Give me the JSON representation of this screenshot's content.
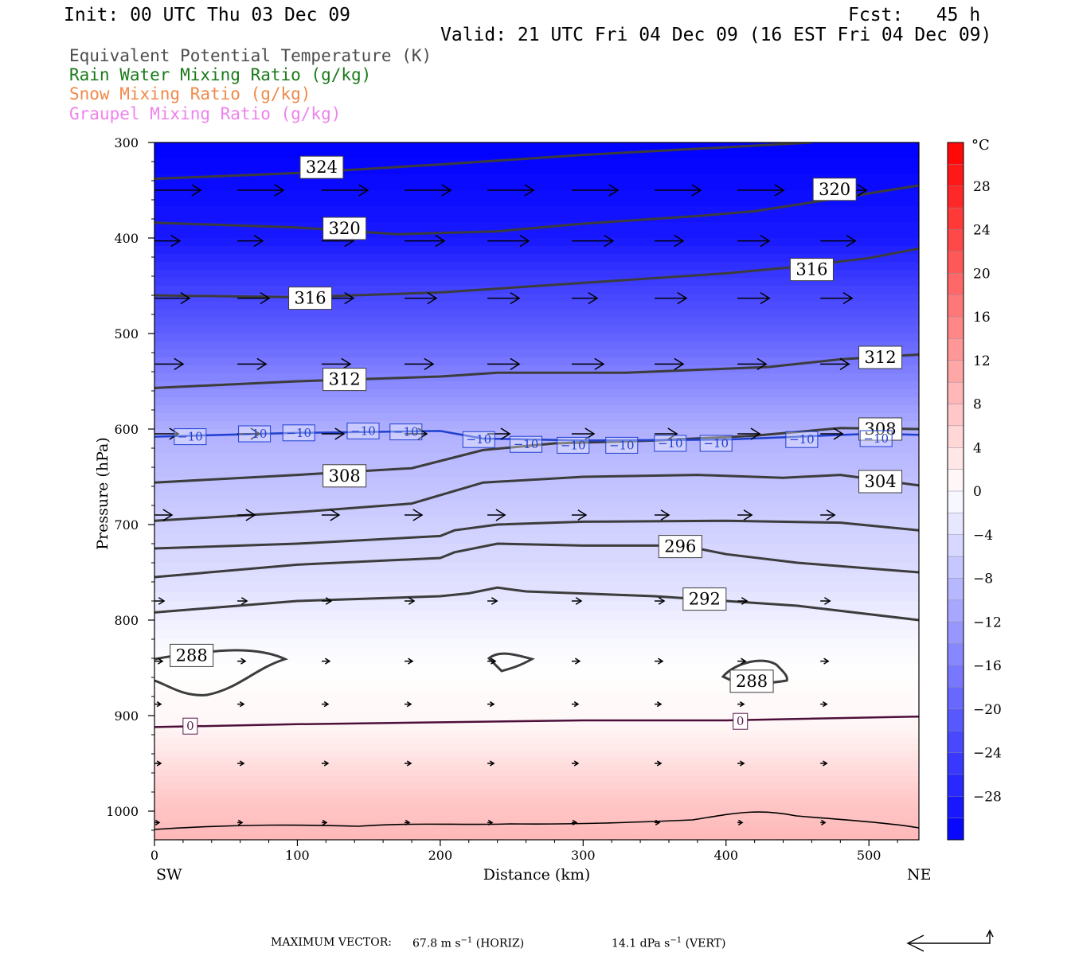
{
  "header": {
    "init": "Init: 00 UTC Thu 03 Dec 09",
    "fcst": "Fcst:   45 h",
    "valid": "Valid: 21 UTC Fri 04 Dec 09 (16 EST Fri 04 Dec 09)"
  },
  "legend": [
    {
      "text": "Equivalent Potential Temperature (K)",
      "color": "#4d4d4d"
    },
    {
      "text": "Rain Water Mixing Ratio (g/kg)",
      "color": "#1a7a1a"
    },
    {
      "text": "Snow Mixing Ratio (g/kg)",
      "color": "#f08a4b"
    },
    {
      "text": "Graupel Mixing Ratio (g/kg)",
      "color": "#ee82ee"
    }
  ],
  "chart_data": {
    "type": "cross-section",
    "xlabel": "Distance (km)",
    "ylabel": "Pressure (hPa)",
    "xlim": [
      0,
      535
    ],
    "ylim": [
      1030,
      300
    ],
    "x_ticks": [
      0,
      100,
      200,
      300,
      400,
      500
    ],
    "y_ticks": [
      300,
      400,
      500,
      600,
      700,
      800,
      900,
      1000
    ],
    "x_left_label": "SW",
    "x_right_label": "NE",
    "colorbar": {
      "unit": "°C",
      "min": -32,
      "max": 32,
      "tick_labels": [
        "28",
        "24",
        "20",
        "16",
        "12",
        "8",
        "4",
        "0",
        "−4",
        "−8",
        "−12",
        "−16",
        "−20",
        "−24",
        "−28"
      ],
      "tick_values": [
        28,
        24,
        20,
        16,
        12,
        8,
        4,
        0,
        -4,
        -8,
        -12,
        -16,
        -20,
        -24,
        -28
      ]
    },
    "temperature_field": [
      {
        "p": 300,
        "t": -32
      },
      {
        "p": 400,
        "t": -29
      },
      {
        "p": 450,
        "t": -24
      },
      {
        "p": 500,
        "t": -20
      },
      {
        "p": 550,
        "t": -15
      },
      {
        "p": 600,
        "t": -10
      },
      {
        "p": 650,
        "t": -8
      },
      {
        "p": 700,
        "t": -6
      },
      {
        "p": 760,
        "t": -4
      },
      {
        "p": 820,
        "t": -1
      },
      {
        "p": 870,
        "t": 0.5
      },
      {
        "p": 910,
        "t": 1
      },
      {
        "p": 950,
        "t": 4
      },
      {
        "p": 990,
        "t": 7
      },
      {
        "p": 1030,
        "t": 9
      }
    ],
    "theta_e_contours": [
      {
        "label": "324",
        "points": [
          [
            0,
            338
          ],
          [
            100,
            332
          ],
          [
            200,
            323
          ],
          [
            300,
            313
          ],
          [
            400,
            305
          ],
          [
            460,
            300
          ]
        ]
      },
      {
        "label": "320",
        "points": [
          [
            0,
            384
          ],
          [
            100,
            389
          ],
          [
            170,
            396
          ],
          [
            240,
            393
          ],
          [
            300,
            385
          ],
          [
            380,
            377
          ],
          [
            420,
            372
          ],
          [
            480,
            358
          ],
          [
            535,
            345
          ]
        ]
      },
      {
        "label": "316",
        "points": [
          [
            0,
            460
          ],
          [
            100,
            462
          ],
          [
            200,
            457
          ],
          [
            300,
            447
          ],
          [
            400,
            437
          ],
          [
            450,
            430
          ],
          [
            500,
            421
          ],
          [
            535,
            411
          ]
        ]
      },
      {
        "label": "312",
        "points": [
          [
            0,
            557
          ],
          [
            100,
            550
          ],
          [
            200,
            545
          ],
          [
            240,
            541
          ],
          [
            330,
            541
          ],
          [
            430,
            535
          ],
          [
            480,
            527
          ],
          [
            535,
            522
          ]
        ]
      },
      {
        "label": "308",
        "points": [
          [
            0,
            656
          ],
          [
            100,
            648
          ],
          [
            180,
            641
          ],
          [
            230,
            622
          ],
          [
            280,
            615
          ],
          [
            350,
            612
          ],
          [
            420,
            607
          ],
          [
            480,
            599
          ],
          [
            535,
            600
          ]
        ]
      },
      {
        "label": "304",
        "points": [
          [
            0,
            696
          ],
          [
            100,
            687
          ],
          [
            180,
            678
          ],
          [
            230,
            656
          ],
          [
            300,
            650
          ],
          [
            380,
            648
          ],
          [
            440,
            651
          ],
          [
            480,
            648
          ],
          [
            535,
            659
          ]
        ]
      },
      {
        "label": "300",
        "points": [
          [
            0,
            725
          ],
          [
            100,
            720
          ],
          [
            200,
            712
          ],
          [
            210,
            706
          ],
          [
            240,
            700
          ],
          [
            300,
            697
          ],
          [
            400,
            696
          ],
          [
            480,
            698
          ],
          [
            535,
            706
          ]
        ]
      },
      {
        "label": "296",
        "points": [
          [
            0,
            755
          ],
          [
            100,
            742
          ],
          [
            200,
            735
          ],
          [
            210,
            729
          ],
          [
            240,
            720
          ],
          [
            300,
            722
          ],
          [
            370,
            722
          ],
          [
            400,
            731
          ],
          [
            450,
            740
          ],
          [
            535,
            750
          ]
        ]
      },
      {
        "label": "292",
        "points": [
          [
            0,
            792
          ],
          [
            100,
            780
          ],
          [
            200,
            775
          ],
          [
            220,
            772
          ],
          [
            240,
            766
          ],
          [
            260,
            770
          ],
          [
            350,
            775
          ],
          [
            400,
            780
          ],
          [
            450,
            785
          ],
          [
            535,
            800
          ]
        ]
      }
    ],
    "zero_line": [
      [
        0,
        912
      ],
      [
        100,
        909
      ],
      [
        200,
        907
      ],
      [
        300,
        905
      ],
      [
        400,
        905
      ],
      [
        535,
        901
      ]
    ],
    "minus10_line": [
      [
        0,
        608
      ],
      [
        100,
        604
      ],
      [
        200,
        602
      ],
      [
        230,
        610
      ],
      [
        300,
        612
      ],
      [
        400,
        611
      ],
      [
        500,
        605
      ],
      [
        535,
        606
      ]
    ],
    "contour_labels": [
      {
        "text": "324",
        "x": 117,
        "p": 326
      },
      {
        "text": "320",
        "x": 133,
        "p": 390
      },
      {
        "text": "320",
        "x": 476,
        "p": 349
      },
      {
        "text": "316",
        "x": 109,
        "p": 463
      },
      {
        "text": "316",
        "x": 460,
        "p": 433
      },
      {
        "text": "312",
        "x": 133,
        "p": 548
      },
      {
        "text": "312",
        "x": 508,
        "p": 525
      },
      {
        "text": "308",
        "x": 133,
        "p": 649
      },
      {
        "text": "308",
        "x": 508,
        "p": 600
      },
      {
        "text": "304",
        "x": 508,
        "p": 655
      },
      {
        "text": "296",
        "x": 368,
        "p": 723
      },
      {
        "text": "292",
        "x": 385,
        "p": 778
      },
      {
        "text": "288",
        "x": 26,
        "p": 837
      },
      {
        "text": "288",
        "x": 418,
        "p": 864
      }
    ],
    "small_labels": [
      {
        "text": "0",
        "x": 25,
        "p": 911,
        "color": "#5a1a4a"
      },
      {
        "text": "0",
        "x": 410,
        "p": 906,
        "color": "#5a1a4a"
      },
      {
        "text": "−10",
        "x": 25,
        "p": 608,
        "color": "#1f3fd0"
      },
      {
        "text": "−10",
        "x": 70,
        "p": 605,
        "color": "#1f3fd0"
      },
      {
        "text": "−10",
        "x": 101,
        "p": 604,
        "color": "#1f3fd0"
      },
      {
        "text": "−10",
        "x": 146,
        "p": 602,
        "color": "#1f3fd0"
      },
      {
        "text": "−10",
        "x": 176,
        "p": 603,
        "color": "#1f3fd0"
      },
      {
        "text": "−10",
        "x": 227,
        "p": 611,
        "color": "#1f3fd0"
      },
      {
        "text": "−10",
        "x": 260,
        "p": 616,
        "color": "#1f3fd0"
      },
      {
        "text": "−10",
        "x": 293,
        "p": 617,
        "color": "#1f3fd0"
      },
      {
        "text": "−10",
        "x": 327,
        "p": 617,
        "color": "#1f3fd0"
      },
      {
        "text": "−10",
        "x": 361,
        "p": 615,
        "color": "#1f3fd0"
      },
      {
        "text": "−10",
        "x": 393,
        "p": 615,
        "color": "#1f3fd0"
      },
      {
        "text": "−10",
        "x": 453,
        "p": 611,
        "color": "#1f3fd0"
      },
      {
        "text": "−10",
        "x": 505,
        "p": 610,
        "color": "#1f3fd0"
      }
    ],
    "wind_vectors": [
      {
        "p": 350,
        "xs": [
          0,
          58,
          117,
          175,
          233,
          292,
          350,
          408,
          466
        ],
        "len": [
          58,
          58,
          58,
          58,
          58,
          58,
          58,
          58,
          58
        ]
      },
      {
        "p": 403,
        "xs": [
          0,
          58,
          117,
          175,
          233,
          292,
          350,
          408,
          466
        ],
        "len": [
          32,
          32,
          40,
          50,
          52,
          52,
          36,
          40,
          44
        ]
      },
      {
        "p": 463,
        "xs": [
          0,
          58,
          117,
          175,
          233,
          292,
          350,
          408,
          466
        ],
        "len": [
          44,
          40,
          40,
          40,
          40,
          32,
          40,
          40,
          40
        ]
      },
      {
        "p": 532,
        "xs": [
          0,
          58,
          117,
          175,
          233,
          292,
          350,
          408,
          466
        ],
        "len": [
          36,
          36,
          36,
          36,
          40,
          40,
          36,
          36,
          36
        ]
      },
      {
        "p": 605,
        "xs": [
          0,
          58,
          117,
          175,
          233,
          292,
          350,
          408,
          466
        ],
        "len": [
          30,
          28,
          28,
          28,
          28,
          28,
          28,
          28,
          28
        ]
      },
      {
        "p": 690,
        "xs": [
          0,
          58,
          117,
          175,
          233,
          292,
          350,
          408,
          466
        ],
        "len": [
          22,
          22,
          22,
          22,
          22,
          18,
          18,
          18,
          18
        ]
      },
      {
        "p": 780,
        "xs": [
          0,
          58,
          117,
          175,
          233,
          292,
          350,
          408,
          466
        ],
        "len": [
          12,
          12,
          12,
          12,
          12,
          12,
          12,
          12,
          12
        ]
      },
      {
        "p": 843,
        "xs": [
          0,
          58,
          117,
          175,
          233,
          292,
          350,
          408,
          466
        ],
        "len": [
          10,
          10,
          10,
          10,
          10,
          10,
          10,
          10,
          10
        ]
      },
      {
        "p": 888,
        "xs": [
          0,
          58,
          117,
          175,
          233,
          292,
          350,
          408,
          466
        ],
        "len": [
          8,
          8,
          8,
          8,
          8,
          8,
          8,
          8,
          8
        ]
      },
      {
        "p": 950,
        "xs": [
          0,
          58,
          117,
          175,
          233,
          292,
          350,
          408,
          466
        ],
        "len": [
          8,
          8,
          8,
          8,
          8,
          8,
          8,
          8,
          8
        ]
      },
      {
        "p": 1012,
        "xs": [
          0,
          58,
          117,
          175,
          233,
          292,
          350,
          408,
          466
        ],
        "len": [
          6,
          6,
          6,
          6,
          6,
          6,
          6,
          6,
          6
        ]
      }
    ]
  },
  "footer": {
    "max_vector_label": "MAXIMUM VECTOR:",
    "horiz_value": "67.8 m s",
    "horiz_unit": "(HORIZ)",
    "vert_value": "14.1 dPa s",
    "vert_unit": "(VERT)",
    "exponent": "−1"
  }
}
